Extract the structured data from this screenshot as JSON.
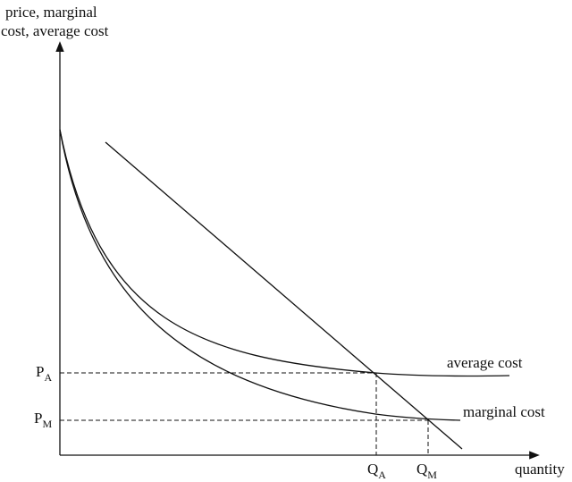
{
  "axes": {
    "y_label_line1": "price, marginal",
    "y_label_line2": "cost, average cost",
    "x_label": "quantity"
  },
  "points": {
    "price_a": {
      "main": "P",
      "sub": "A"
    },
    "price_m": {
      "main": "P",
      "sub": "M"
    },
    "quantity_a": {
      "main": "Q",
      "sub": "A"
    },
    "quantity_m": {
      "main": "Q",
      "sub": "M"
    }
  },
  "curves": {
    "average_cost": "average cost",
    "marginal_cost": "marginal cost"
  }
}
